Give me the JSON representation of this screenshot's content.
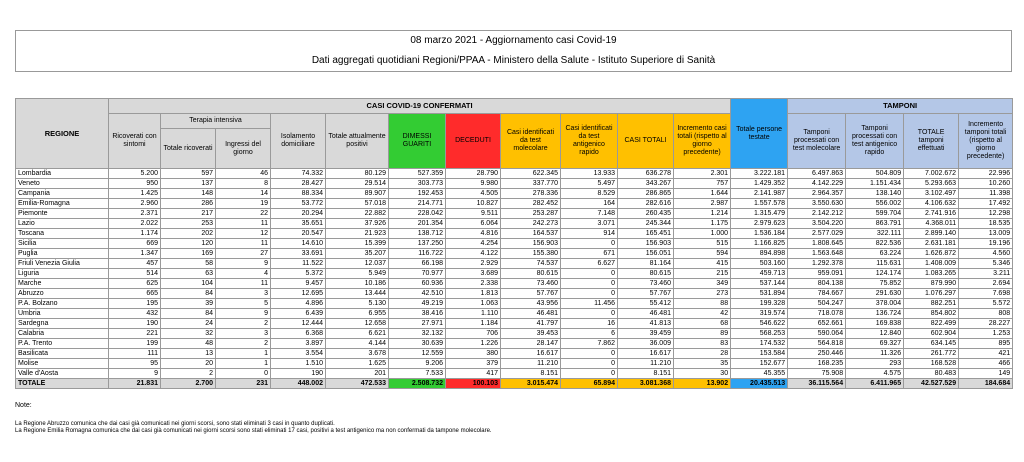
{
  "header": {
    "title": "08 marzo 2021 - Aggiornamento casi Covid-19",
    "subtitle": "Dati aggregati quotidiani Regioni/PPAA - Ministero della Salute - Istituto Superiore di Sanità"
  },
  "table": {
    "region_header": "REGIONE",
    "group_confirmed": "CASI COVID-19 CONFERMATI",
    "group_tests": "TAMPONI",
    "group_icu": "Terapia intensiva",
    "columns": [
      "Ricoverati con sintomi",
      "Totale ricoverati",
      "Ingressi del giorno",
      "Isolamento domiciliare",
      "Totale attualmente positivi",
      "DIMESSI GUARITI",
      "DECEDUTI",
      "Casi identificati da test molecolare",
      "Casi identificati da test antigenico rapido",
      "CASI TOTALI",
      "Incremento casi totali (rispetto al giorno precedente)",
      "Totale persone testate",
      "Tamponi processati con test molecolare",
      "Tamponi processati con test antigenico rapido",
      "TOTALE tamponi effettuati",
      "Incremento tamponi totali (rispetto al giorno precedente)"
    ],
    "rows": [
      [
        "Lombardia",
        "5.200",
        "597",
        "46",
        "74.332",
        "80.129",
        "527.359",
        "28.790",
        "622.345",
        "13.933",
        "636.278",
        "2.301",
        "3.222.181",
        "6.497.863",
        "504.809",
        "7.002.672",
        "22.996"
      ],
      [
        "Veneto",
        "950",
        "137",
        "8",
        "28.427",
        "29.514",
        "303.773",
        "9.980",
        "337.770",
        "5.497",
        "343.267",
        "757",
        "1.429.352",
        "4.142.229",
        "1.151.434",
        "5.293.663",
        "10.260"
      ],
      [
        "Campania",
        "1.425",
        "148",
        "14",
        "88.334",
        "89.907",
        "192.453",
        "4.505",
        "278.336",
        "8.529",
        "286.865",
        "1.644",
        "2.141.987",
        "2.964.357",
        "138.140",
        "3.102.497",
        "11.398"
      ],
      [
        "Emilia-Romagna",
        "2.960",
        "286",
        "19",
        "53.772",
        "57.018",
        "214.771",
        "10.827",
        "282.452",
        "164",
        "282.616",
        "2.987",
        "1.557.578",
        "3.550.630",
        "556.002",
        "4.106.632",
        "17.492"
      ],
      [
        "Piemonte",
        "2.371",
        "217",
        "22",
        "20.294",
        "22.882",
        "228.042",
        "9.511",
        "253.287",
        "7.148",
        "260.435",
        "1.214",
        "1.315.479",
        "2.142.212",
        "599.704",
        "2.741.916",
        "12.298"
      ],
      [
        "Lazio",
        "2.022",
        "253",
        "11",
        "35.651",
        "37.926",
        "201.354",
        "6.064",
        "242.273",
        "3.071",
        "245.344",
        "1.175",
        "2.979.623",
        "3.504.220",
        "863.791",
        "4.368.011",
        "18.535"
      ],
      [
        "Toscana",
        "1.174",
        "202",
        "12",
        "20.547",
        "21.923",
        "138.712",
        "4.816",
        "164.537",
        "914",
        "165.451",
        "1.000",
        "1.536.184",
        "2.577.029",
        "322.111",
        "2.899.140",
        "13.009"
      ],
      [
        "Sicilia",
        "669",
        "120",
        "11",
        "14.610",
        "15.399",
        "137.250",
        "4.254",
        "156.903",
        "0",
        "156.903",
        "515",
        "1.166.825",
        "1.808.645",
        "822.536",
        "2.631.181",
        "19.196"
      ],
      [
        "Puglia",
        "1.347",
        "169",
        "27",
        "33.691",
        "35.207",
        "116.722",
        "4.122",
        "155.380",
        "671",
        "156.051",
        "594",
        "894.898",
        "1.563.648",
        "63.224",
        "1.626.872",
        "4.560"
      ],
      [
        "Friuli Venezia Giulia",
        "457",
        "58",
        "9",
        "11.522",
        "12.037",
        "66.198",
        "2.929",
        "74.537",
        "6.627",
        "81.164",
        "415",
        "503.160",
        "1.292.378",
        "115.631",
        "1.408.009",
        "5.346"
      ],
      [
        "Liguria",
        "514",
        "63",
        "4",
        "5.372",
        "5.949",
        "70.977",
        "3.689",
        "80.615",
        "0",
        "80.615",
        "215",
        "459.713",
        "959.091",
        "124.174",
        "1.083.265",
        "3.211"
      ],
      [
        "Marche",
        "625",
        "104",
        "11",
        "9.457",
        "10.186",
        "60.936",
        "2.338",
        "73.460",
        "0",
        "73.460",
        "349",
        "537.144",
        "804.138",
        "75.852",
        "879.990",
        "2.694"
      ],
      [
        "Abruzzo",
        "665",
        "84",
        "3",
        "12.695",
        "13.444",
        "42.510",
        "1.813",
        "57.767",
        "0",
        "57.767",
        "273",
        "531.894",
        "784.667",
        "291.630",
        "1.076.297",
        "7.698"
      ],
      [
        "P.A. Bolzano",
        "195",
        "39",
        "5",
        "4.896",
        "5.130",
        "49.219",
        "1.063",
        "43.956",
        "11.456",
        "55.412",
        "88",
        "199.328",
        "504.247",
        "378.004",
        "882.251",
        "5.572"
      ],
      [
        "Umbria",
        "432",
        "84",
        "9",
        "6.439",
        "6.955",
        "38.416",
        "1.110",
        "46.481",
        "0",
        "46.481",
        "42",
        "319.574",
        "718.078",
        "136.724",
        "854.802",
        "808"
      ],
      [
        "Sardegna",
        "190",
        "24",
        "2",
        "12.444",
        "12.658",
        "27.971",
        "1.184",
        "41.797",
        "16",
        "41.813",
        "68",
        "546.622",
        "652.661",
        "169.838",
        "822.499",
        "28.227"
      ],
      [
        "Calabria",
        "221",
        "32",
        "3",
        "6.368",
        "6.621",
        "32.132",
        "706",
        "39.453",
        "6",
        "39.459",
        "89",
        "568.253",
        "590.064",
        "12.840",
        "602.904",
        "1.253"
      ],
      [
        "P.A. Trento",
        "199",
        "48",
        "2",
        "3.897",
        "4.144",
        "30.639",
        "1.226",
        "28.147",
        "7.862",
        "36.009",
        "83",
        "174.532",
        "564.818",
        "69.327",
        "634.145",
        "895"
      ],
      [
        "Basilicata",
        "111",
        "13",
        "1",
        "3.554",
        "3.678",
        "12.559",
        "380",
        "16.617",
        "0",
        "16.617",
        "28",
        "153.584",
        "250.446",
        "11.326",
        "261.772",
        "421"
      ],
      [
        "Molise",
        "95",
        "20",
        "1",
        "1.510",
        "1.625",
        "9.206",
        "379",
        "11.210",
        "0",
        "11.210",
        "35",
        "152.677",
        "168.235",
        "293",
        "168.528",
        "466"
      ],
      [
        "Valle d'Aosta",
        "9",
        "2",
        "0",
        "190",
        "201",
        "7.533",
        "417",
        "8.151",
        "0",
        "8.151",
        "30",
        "45.355",
        "75.908",
        "4.575",
        "80.483",
        "149"
      ]
    ],
    "total": [
      "TOTALE",
      "21.831",
      "2.700",
      "231",
      "448.002",
      "472.533",
      "2.508.732",
      "100.103",
      "3.015.474",
      "65.894",
      "3.081.368",
      "13.902",
      "20.435.513",
      "36.115.564",
      "6.411.965",
      "42.527.529",
      "184.684"
    ]
  },
  "notes": {
    "label": "Note:",
    "lines": [
      "La Regione Abruzzo comunica che dai casi già comunicati nei giorni scorsi, sono stati eliminati 3 casi in quanto duplicati.",
      "La Regione Emilia Romagna comunica che dai casi già comunicati nei giorni scorsi sono stati eliminati 17 casi, positivi a test antigenico ma non confermati da tampone molecolare."
    ]
  }
}
